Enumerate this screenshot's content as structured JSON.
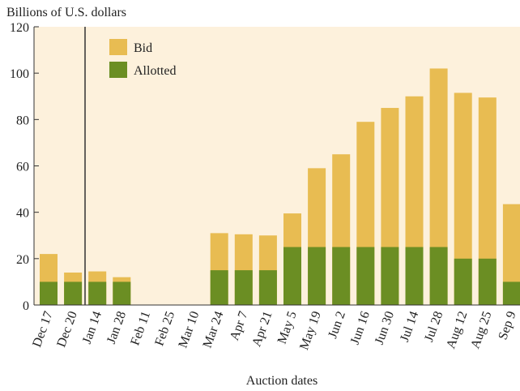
{
  "chart_data": {
    "type": "bar",
    "y_label": "Billions of U.S. dollars",
    "x_label": "Auction dates",
    "categories": [
      "Dec 17",
      "Dec 20",
      "Jan 14",
      "Jan 28",
      "Feb 11",
      "Feb 25",
      "Mar 10",
      "Mar 24",
      "Apr 7",
      "Apr 21",
      "May 5",
      "May 19",
      "Jun 2",
      "Jun 16",
      "Jun 30",
      "Jul 14",
      "Jul 28",
      "Aug 12",
      "Aug 25",
      "Sep 9"
    ],
    "series": [
      {
        "name": "Bid",
        "color": "#e8bc52",
        "values": [
          22,
          14,
          14.5,
          12,
          null,
          null,
          null,
          31,
          30.5,
          30,
          39.5,
          59,
          65,
          79,
          85,
          90,
          102,
          91.5,
          89.5,
          43.5
        ]
      },
      {
        "name": "Allotted",
        "color": "#6b8e23",
        "values": [
          10,
          10,
          10,
          10,
          null,
          null,
          null,
          15,
          15,
          15,
          25,
          25,
          25,
          25,
          25,
          25,
          25,
          20,
          20,
          10
        ]
      }
    ],
    "overlap": true,
    "ylim": [
      0,
      120
    ],
    "yticks": [
      0,
      20,
      40,
      60,
      80,
      100,
      120
    ],
    "legend": "top-left"
  }
}
